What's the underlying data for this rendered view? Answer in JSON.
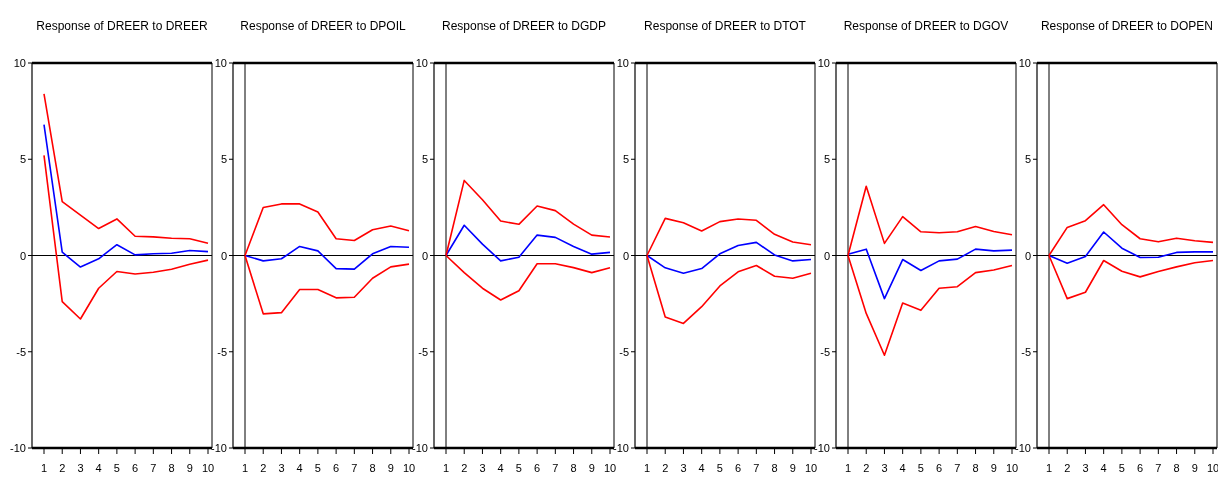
{
  "chart_data": [
    {
      "type": "line",
      "title": "Response of DREER to DREER",
      "categories": [
        "1",
        "2",
        "3",
        "4",
        "5",
        "6",
        "7",
        "8",
        "9",
        "10"
      ],
      "ylim": [
        -10,
        10
      ],
      "yticks": [
        -10,
        -5,
        0,
        5,
        10
      ],
      "grid": false,
      "ref_lines": [
        {
          "axis": "y",
          "value": 0
        }
      ],
      "series": [
        {
          "color": "#0000ff",
          "values": [
            6.8,
            0.17,
            -0.6,
            -0.17,
            0.56,
            0.03,
            0.09,
            0.12,
            0.26,
            0.2
          ]
        },
        {
          "color": "#ff0000",
          "values": [
            8.4,
            2.8,
            2.1,
            1.4,
            1.9,
            1.0,
            0.97,
            0.9,
            0.87,
            0.64
          ]
        },
        {
          "color": "#ff0000",
          "values": [
            5.2,
            -2.4,
            -3.3,
            -1.7,
            -0.83,
            -0.96,
            -0.87,
            -0.71,
            -0.45,
            -0.24
          ]
        }
      ]
    },
    {
      "type": "line",
      "title": "Response of DREER to DPOIL",
      "categories": [
        "1",
        "2",
        "3",
        "4",
        "5",
        "6",
        "7",
        "8",
        "9",
        "10"
      ],
      "ylim": [
        -10,
        10
      ],
      "yticks": [
        -10,
        -5,
        0,
        5,
        10
      ],
      "grid": false,
      "ref_lines": [
        {
          "axis": "y",
          "value": 0
        },
        {
          "axis": "x",
          "value": "1"
        }
      ],
      "series": [
        {
          "color": "#0000ff",
          "values": [
            0,
            -0.28,
            -0.17,
            0.47,
            0.24,
            -0.68,
            -0.71,
            0.09,
            0.47,
            0.43
          ]
        },
        {
          "color": "#ff0000",
          "values": [
            0,
            2.49,
            2.68,
            2.68,
            2.26,
            0.87,
            0.78,
            1.34,
            1.53,
            1.29
          ]
        },
        {
          "color": "#ff0000",
          "values": [
            0,
            -3.03,
            -2.97,
            -1.77,
            -1.77,
            -2.2,
            -2.17,
            -1.18,
            -0.59,
            -0.45
          ]
        }
      ]
    },
    {
      "type": "line",
      "title": "Response of DREER to DGDP",
      "categories": [
        "1",
        "2",
        "3",
        "4",
        "5",
        "6",
        "7",
        "8",
        "9",
        "10"
      ],
      "ylim": [
        -10,
        10
      ],
      "yticks": [
        -10,
        -5,
        0,
        5,
        10
      ],
      "grid": false,
      "ref_lines": [
        {
          "axis": "y",
          "value": 0
        },
        {
          "axis": "x",
          "value": "1"
        }
      ],
      "series": [
        {
          "color": "#0000ff",
          "values": [
            0,
            1.57,
            0.59,
            -0.28,
            -0.09,
            1.06,
            0.94,
            0.47,
            0.07,
            0.16
          ]
        },
        {
          "color": "#ff0000",
          "values": [
            0,
            3.9,
            2.9,
            1.79,
            1.62,
            2.57,
            2.33,
            1.63,
            1.06,
            0.96
          ]
        },
        {
          "color": "#ff0000",
          "values": [
            0,
            -0.89,
            -1.7,
            -2.31,
            -1.83,
            -0.43,
            -0.43,
            -0.63,
            -0.89,
            -0.64
          ]
        }
      ]
    },
    {
      "type": "line",
      "title": "Response of DREER to DTOT",
      "categories": [
        "1",
        "2",
        "3",
        "4",
        "5",
        "6",
        "7",
        "8",
        "9",
        "10"
      ],
      "ylim": [
        -10,
        10
      ],
      "yticks": [
        -10,
        -5,
        0,
        5,
        10
      ],
      "grid": false,
      "ref_lines": [
        {
          "axis": "y",
          "value": 0
        },
        {
          "axis": "x",
          "value": "1"
        }
      ],
      "series": [
        {
          "color": "#0000ff",
          "values": [
            0,
            -0.64,
            -0.92,
            -0.68,
            0.09,
            0.52,
            0.68,
            0.03,
            -0.28,
            -0.21
          ]
        },
        {
          "color": "#ff0000",
          "values": [
            0,
            1.93,
            1.7,
            1.27,
            1.76,
            1.9,
            1.83,
            1.1,
            0.7,
            0.56
          ]
        },
        {
          "color": "#ff0000",
          "values": [
            0,
            -3.2,
            -3.53,
            -2.66,
            -1.58,
            -0.85,
            -0.52,
            -1.08,
            -1.18,
            -0.92
          ]
        }
      ]
    },
    {
      "type": "line",
      "title": "Response of DREER to DGOV",
      "categories": [
        "1",
        "2",
        "3",
        "4",
        "5",
        "6",
        "7",
        "8",
        "9",
        "10"
      ],
      "ylim": [
        -10,
        10
      ],
      "yticks": [
        -10,
        -5,
        0,
        5,
        10
      ],
      "grid": false,
      "ref_lines": [
        {
          "axis": "y",
          "value": 0
        },
        {
          "axis": "x",
          "value": "1"
        }
      ],
      "series": [
        {
          "color": "#0000ff",
          "values": [
            0.07,
            0.33,
            -2.24,
            -0.21,
            -0.78,
            -0.28,
            -0.19,
            0.33,
            0.24,
            0.28
          ]
        },
        {
          "color": "#ff0000",
          "values": [
            0,
            3.6,
            0.63,
            2.02,
            1.23,
            1.18,
            1.23,
            1.51,
            1.25,
            1.08
          ]
        },
        {
          "color": "#ff0000",
          "values": [
            0,
            -3.01,
            -5.18,
            -2.47,
            -2.85,
            -1.7,
            -1.62,
            -0.89,
            -0.75,
            -0.52
          ]
        }
      ]
    },
    {
      "type": "line",
      "title": "Response of DREER to DOPEN",
      "categories": [
        "1",
        "2",
        "3",
        "4",
        "5",
        "6",
        "7",
        "8",
        "9",
        "10"
      ],
      "ylim": [
        -10,
        10
      ],
      "yticks": [
        -10,
        -5,
        0,
        5,
        10
      ],
      "grid": false,
      "ref_lines": [
        {
          "axis": "y",
          "value": 0
        },
        {
          "axis": "x",
          "value": "1"
        }
      ],
      "series": [
        {
          "color": "#0000ff",
          "values": [
            0,
            -0.4,
            -0.05,
            1.22,
            0.38,
            -0.1,
            -0.09,
            0.16,
            0.19,
            0.19
          ]
        },
        {
          "color": "#ff0000",
          "values": [
            0,
            1.46,
            1.81,
            2.64,
            1.6,
            0.87,
            0.71,
            0.9,
            0.77,
            0.68
          ]
        },
        {
          "color": "#ff0000",
          "values": [
            0,
            -2.24,
            -1.91,
            -0.26,
            -0.82,
            -1.11,
            -0.83,
            -0.59,
            -0.38,
            -0.26
          ]
        }
      ]
    }
  ]
}
